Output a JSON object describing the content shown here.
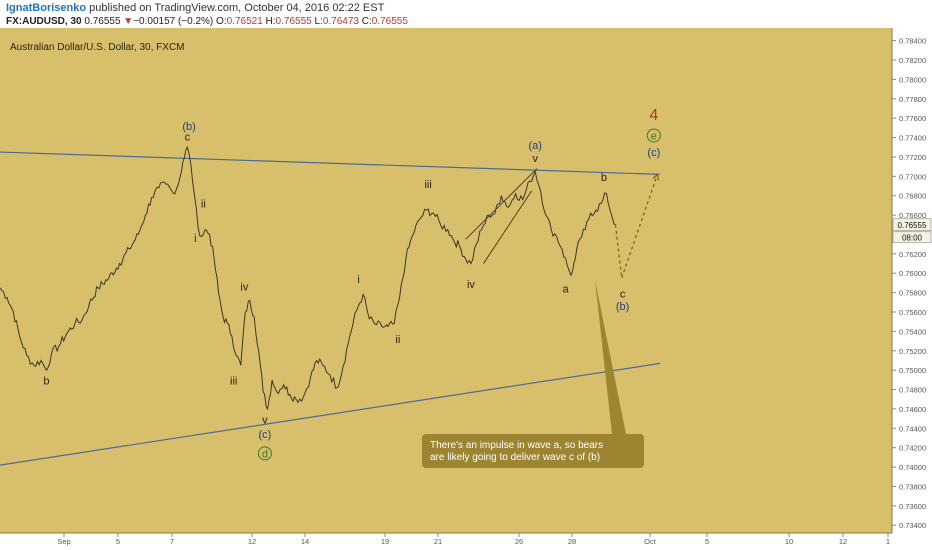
{
  "header": {
    "author": "IgnatBorisenko",
    "published": "published on TradingView.com, October 04, 2016 02:22 EST",
    "symbol": "FX:AUDUSD, 30",
    "last": "0.76555",
    "change_arrow": "▼",
    "change": "−0.00157 (−0.2%)",
    "o_label": "O:",
    "o_value": "0.76521",
    "h_label": "H:",
    "h_value": "0.76555",
    "l_label": "L:",
    "l_value": "0.76473",
    "c_label": "C:",
    "c_value": "0.76555"
  },
  "colors": {
    "background": "#d8bf6c",
    "price_line": "#3b3628",
    "trendline": "#4a6b96",
    "label_blue": "#1f3f7a",
    "label_dark": "#2a2410",
    "label_red": "#b03a1a",
    "label_green": "#3c7a2a",
    "callout_fill": "#9c8431",
    "callout_text": "#ffffff",
    "flag_box": "#f5f1e0"
  },
  "chart_data": {
    "type": "line",
    "title": "Australian Dollar/U.S. Dollar, 30, FXCM",
    "x_tick_labels": [
      "Sep",
      "5",
      "7",
      "12",
      "14",
      "19",
      "21",
      "26",
      "28",
      "Oct",
      "5",
      "10",
      "12",
      "1"
    ],
    "y_ticks": [
      0.734,
      0.736,
      0.738,
      0.74,
      0.742,
      0.744,
      0.746,
      0.748,
      0.75,
      0.752,
      0.754,
      0.756,
      0.758,
      0.76,
      0.762,
      0.764,
      0.766,
      0.768,
      0.77,
      0.772,
      0.774,
      0.776,
      0.778,
      0.78,
      0.782,
      0.784
    ],
    "ylim": [
      0.7332,
      0.7853
    ],
    "x_range": [
      0,
      1000
    ],
    "series": [
      {
        "values": [
          [
            0,
            0.7585
          ],
          [
            8,
            0.7575
          ],
          [
            15,
            0.756
          ],
          [
            22,
            0.7535
          ],
          [
            30,
            0.7515
          ],
          [
            38,
            0.7505
          ],
          [
            46,
            0.751
          ],
          [
            52,
            0.75
          ],
          [
            58,
            0.7518
          ],
          [
            66,
            0.7525
          ],
          [
            75,
            0.7538
          ],
          [
            84,
            0.7548
          ],
          [
            92,
            0.7552
          ],
          [
            100,
            0.7568
          ],
          [
            110,
            0.7585
          ],
          [
            122,
            0.7595
          ],
          [
            134,
            0.761
          ],
          [
            145,
            0.7625
          ],
          [
            155,
            0.764
          ],
          [
            163,
            0.766
          ],
          [
            170,
            0.7678
          ],
          [
            178,
            0.7688
          ],
          [
            186,
            0.7692
          ],
          [
            194,
            0.7683
          ],
          [
            200,
            0.7692
          ],
          [
            205,
            0.7715
          ],
          [
            210,
            0.773
          ],
          [
            214,
            0.7712
          ],
          [
            218,
            0.768
          ],
          [
            222,
            0.7648
          ],
          [
            226,
            0.7638
          ],
          [
            230,
            0.7645
          ],
          [
            235,
            0.764
          ],
          [
            240,
            0.7615
          ],
          [
            245,
            0.758
          ],
          [
            250,
            0.7555
          ],
          [
            255,
            0.7548
          ],
          [
            260,
            0.7535
          ],
          [
            265,
            0.7515
          ],
          [
            270,
            0.7505
          ],
          [
            275,
            0.756
          ],
          [
            280,
            0.7572
          ],
          [
            285,
            0.7555
          ],
          [
            290,
            0.752
          ],
          [
            295,
            0.7478
          ],
          [
            300,
            0.746
          ],
          [
            305,
            0.749
          ],
          [
            310,
            0.7478
          ],
          [
            318,
            0.7485
          ],
          [
            325,
            0.7475
          ],
          [
            332,
            0.747
          ],
          [
            340,
            0.7472
          ],
          [
            348,
            0.7492
          ],
          [
            355,
            0.751
          ],
          [
            362,
            0.7505
          ],
          [
            370,
            0.7495
          ],
          [
            378,
            0.7482
          ],
          [
            385,
            0.7505
          ],
          [
            392,
            0.7535
          ],
          [
            400,
            0.7562
          ],
          [
            407,
            0.7578
          ],
          [
            414,
            0.7553
          ],
          [
            420,
            0.7548
          ],
          [
            428,
            0.7545
          ],
          [
            435,
            0.7545
          ],
          [
            442,
            0.7548
          ],
          [
            448,
            0.7575
          ],
          [
            455,
            0.7615
          ],
          [
            462,
            0.7638
          ],
          [
            470,
            0.7655
          ],
          [
            478,
            0.7665
          ],
          [
            486,
            0.7662
          ],
          [
            494,
            0.765
          ],
          [
            502,
            0.7645
          ],
          [
            508,
            0.7635
          ],
          [
            515,
            0.7628
          ],
          [
            522,
            0.7615
          ],
          [
            528,
            0.761
          ],
          [
            534,
            0.763
          ],
          [
            540,
            0.7645
          ],
          [
            548,
            0.766
          ],
          [
            555,
            0.7662
          ],
          [
            562,
            0.768
          ],
          [
            570,
            0.7668
          ],
          [
            578,
            0.7682
          ],
          [
            586,
            0.7676
          ],
          [
            594,
            0.7695
          ],
          [
            600,
            0.7705
          ],
          [
            606,
            0.7685
          ],
          [
            612,
            0.766
          ],
          [
            618,
            0.7645
          ],
          [
            624,
            0.7638
          ],
          [
            630,
            0.7625
          ],
          [
            636,
            0.7608
          ],
          [
            640,
            0.7598
          ],
          [
            645,
            0.7615
          ],
          [
            650,
            0.7635
          ],
          [
            656,
            0.7645
          ],
          [
            662,
            0.7662
          ],
          [
            668,
            0.7665
          ],
          [
            674,
            0.7672
          ],
          [
            680,
            0.7682
          ],
          [
            685,
            0.7662
          ],
          [
            690,
            0.765
          ]
        ]
      }
    ],
    "projection": [
      [
        690,
        0.765
      ],
      [
        697,
        0.7595
      ],
      [
        737,
        0.7702
      ]
    ],
    "trendlines": [
      {
        "from": [
          0,
          0.7725
        ],
        "to": [
          740,
          0.7702
        ]
      },
      {
        "from": [
          0,
          0.7402
        ],
        "to": [
          740,
          0.7507
        ]
      }
    ],
    "channel_lines": [
      {
        "from": [
          522,
          0.7635
        ],
        "to": [
          602,
          0.7708
        ]
      },
      {
        "from": [
          542,
          0.761
        ],
        "to": [
          596,
          0.7685
        ]
      }
    ],
    "wave_labels": [
      {
        "text": "(b)",
        "at": [
          212,
          0.7748
        ],
        "color": "label_blue"
      },
      {
        "text": "c",
        "at": [
          210,
          0.7737
        ],
        "color": "label_dark"
      },
      {
        "text": "ii",
        "at": [
          228,
          0.7668
        ],
        "color": "label_dark"
      },
      {
        "text": "i",
        "at": [
          219,
          0.7632
        ],
        "color": "label_dark"
      },
      {
        "text": "iv",
        "at": [
          274,
          0.7582
        ],
        "color": "label_dark"
      },
      {
        "text": "iii",
        "at": [
          262,
          0.7485
        ],
        "color": "label_dark"
      },
      {
        "text": "v",
        "at": [
          297,
          0.7445
        ],
        "color": "label_dark"
      },
      {
        "text": "(c)",
        "at": [
          297,
          0.743
        ],
        "color": "label_blue"
      },
      {
        "text": "d",
        "at": [
          297,
          0.741
        ],
        "color": "label_green"
      },
      {
        "text": "b",
        "at": [
          52,
          0.7485
        ],
        "color": "label_dark"
      },
      {
        "text": "i",
        "at": [
          402,
          0.759
        ],
        "color": "label_dark"
      },
      {
        "text": "ii",
        "at": [
          446,
          0.7528
        ],
        "color": "label_dark"
      },
      {
        "text": "iii",
        "at": [
          480,
          0.7688
        ],
        "color": "label_dark"
      },
      {
        "text": "iv",
        "at": [
          528,
          0.7585
        ],
        "color": "label_dark"
      },
      {
        "text": "(a)",
        "at": [
          600,
          0.7728
        ],
        "color": "label_blue"
      },
      {
        "text": "v",
        "at": [
          600,
          0.7715
        ],
        "color": "label_dark"
      },
      {
        "text": "a",
        "at": [
          634,
          0.758
        ],
        "color": "label_dark"
      },
      {
        "text": "b",
        "at": [
          677,
          0.7695
        ],
        "color": "label_dark"
      },
      {
        "text": "c",
        "at": [
          698,
          0.7575
        ],
        "color": "label_dark"
      },
      {
        "text": "(b)",
        "at": [
          698,
          0.7562
        ],
        "color": "label_blue"
      },
      {
        "text": "4",
        "at": [
          733,
          0.7758
        ],
        "color": "label_red"
      },
      {
        "text": "e",
        "at": [
          733,
          0.7738
        ],
        "color": "label_green"
      },
      {
        "text": "(c)",
        "at": [
          733,
          0.7721
        ],
        "color": "label_blue"
      }
    ],
    "annotation": {
      "lines": [
        "There's an impulse in wave a, so bears",
        "are likely going to deliver wave c of (b)"
      ],
      "pointer_to": [
        667,
        0.7593
      ]
    },
    "last_price_label": "0.76555",
    "countdown_label": "08:00",
    "grid": false
  }
}
